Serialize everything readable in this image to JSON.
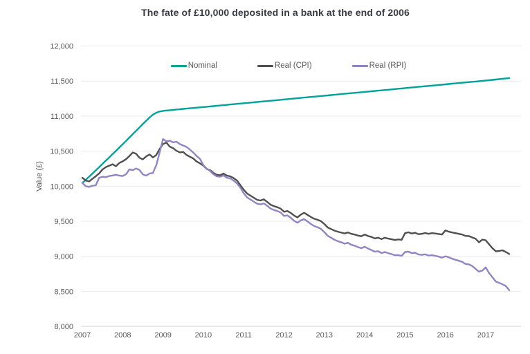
{
  "title": "The fate of £10,000 deposited in a bank at the end of 2006",
  "chart_data": {
    "type": "line",
    "title": "The fate of £10,000 deposited in a bank at the end of 2006",
    "xlabel": "",
    "ylabel": "Value (£)",
    "grid": "horizontal",
    "legend_position": "top-center",
    "ylim": [
      8000,
      12000
    ],
    "xlim": [
      2007,
      2017.75
    ],
    "x_axis": {
      "tick_labels": [
        "2007",
        "2008",
        "2009",
        "2010",
        "2011",
        "2012",
        "2013",
        "2014",
        "2015",
        "2016",
        "2017"
      ],
      "tick_values": [
        2007,
        2008,
        2009,
        2010,
        2011,
        2012,
        2013,
        2014,
        2015,
        2016,
        2017
      ]
    },
    "y_axis": {
      "label": "Value (£)",
      "tick_labels": [
        "8,000",
        "8,500",
        "9,000",
        "9,500",
        "10,000",
        "10,500",
        "11,000",
        "11,500",
        "12,000"
      ],
      "tick_values": [
        8000,
        8500,
        9000,
        9500,
        10000,
        10500,
        11000,
        11500,
        12000
      ]
    },
    "x_start": 2007.0,
    "x_step": 0.0833333,
    "series": [
      {
        "name": "Nominal",
        "color": "#00A29A",
        "values": [
          10045,
          10090,
          10135,
          10180,
          10226,
          10272,
          10318,
          10364,
          10410,
          10457,
          10504,
          10551,
          10598,
          10646,
          10694,
          10742,
          10790,
          10838,
          10886,
          10934,
          10980,
          11020,
          11048,
          11065,
          11074,
          11080,
          11084,
          11088,
          11093,
          11097,
          11102,
          11106,
          11111,
          11115,
          11120,
          11124,
          11129,
          11133,
          11138,
          11142,
          11147,
          11151,
          11156,
          11160,
          11165,
          11169,
          11174,
          11178,
          11183,
          11187,
          11192,
          11196,
          11201,
          11205,
          11210,
          11214,
          11219,
          11223,
          11228,
          11232,
          11237,
          11241,
          11246,
          11250,
          11255,
          11259,
          11264,
          11268,
          11273,
          11277,
          11282,
          11286,
          11291,
          11295,
          11300,
          11304,
          11309,
          11313,
          11318,
          11322,
          11327,
          11331,
          11336,
          11340,
          11345,
          11349,
          11354,
          11358,
          11363,
          11367,
          11372,
          11376,
          11381,
          11385,
          11390,
          11394,
          11399,
          11403,
          11408,
          11412,
          11417,
          11421,
          11426,
          11430,
          11435,
          11439,
          11444,
          11448,
          11453,
          11457,
          11462,
          11466,
          11471,
          11475,
          11480,
          11484,
          11489,
          11493,
          11498,
          11502,
          11507,
          11512,
          11517,
          11522,
          11527,
          11532,
          11537,
          11542
        ]
      },
      {
        "name": "Real (CPI)",
        "color": "#4F4F4F",
        "values": [
          10120,
          10080,
          10068,
          10105,
          10142,
          10182,
          10237,
          10272,
          10292,
          10312,
          10285,
          10330,
          10355,
          10385,
          10430,
          10480,
          10462,
          10405,
          10382,
          10425,
          10452,
          10410,
          10445,
          10530,
          10600,
          10622,
          10565,
          10542,
          10505,
          10482,
          10488,
          10445,
          10420,
          10395,
          10352,
          10325,
          10292,
          10245,
          10228,
          10190,
          10162,
          10155,
          10180,
          10150,
          10140,
          10115,
          10080,
          10015,
          9950,
          9895,
          9865,
          9835,
          9805,
          9795,
          9812,
          9775,
          9735,
          9715,
          9700,
          9680,
          9635,
          9645,
          9618,
          9580,
          9555,
          9595,
          9620,
          9590,
          9560,
          9535,
          9520,
          9500,
          9460,
          9410,
          9388,
          9365,
          9350,
          9338,
          9325,
          9340,
          9320,
          9310,
          9295,
          9285,
          9310,
          9288,
          9275,
          9255,
          9265,
          9245,
          9265,
          9252,
          9242,
          9232,
          9240,
          9235,
          9330,
          9342,
          9325,
          9335,
          9315,
          9320,
          9332,
          9320,
          9330,
          9325,
          9318,
          9310,
          9368,
          9350,
          9340,
          9330,
          9320,
          9310,
          9290,
          9288,
          9268,
          9250,
          9200,
          9238,
          9228,
          9170,
          9115,
          9070,
          9075,
          9085,
          9060,
          9032
        ]
      },
      {
        "name": "Real (RPI)",
        "color": "#9184C4",
        "values": [
          10048,
          10000,
          9990,
          10005,
          10012,
          10120,
          10135,
          10128,
          10145,
          10152,
          10162,
          10150,
          10145,
          10170,
          10240,
          10228,
          10252,
          10230,
          10168,
          10150,
          10180,
          10188,
          10300,
          10480,
          10672,
          10640,
          10650,
          10625,
          10635,
          10600,
          10580,
          10560,
          10520,
          10480,
          10430,
          10390,
          10300,
          10250,
          10218,
          10170,
          10140,
          10135,
          10152,
          10120,
          10110,
          10080,
          10040,
          9980,
          9900,
          9840,
          9810,
          9780,
          9750,
          9740,
          9755,
          9720,
          9680,
          9660,
          9645,
          9625,
          9575,
          9582,
          9550,
          9505,
          9478,
          9512,
          9530,
          9495,
          9460,
          9430,
          9415,
          9390,
          9345,
          9290,
          9265,
          9235,
          9215,
          9200,
          9180,
          9192,
          9165,
          9150,
          9130,
          9115,
          9135,
          9110,
          9088,
          9065,
          9072,
          9045,
          9060,
          9045,
          9030,
          9015,
          9015,
          9005,
          9060,
          9065,
          9045,
          9050,
          9025,
          9020,
          9028,
          9010,
          9015,
          9005,
          8995,
          8980,
          9000,
          8985,
          8965,
          8950,
          8935,
          8920,
          8890,
          8885,
          8860,
          8820,
          8780,
          8795,
          8840,
          8760,
          8700,
          8640,
          8620,
          8600,
          8575,
          8515
        ]
      }
    ]
  }
}
